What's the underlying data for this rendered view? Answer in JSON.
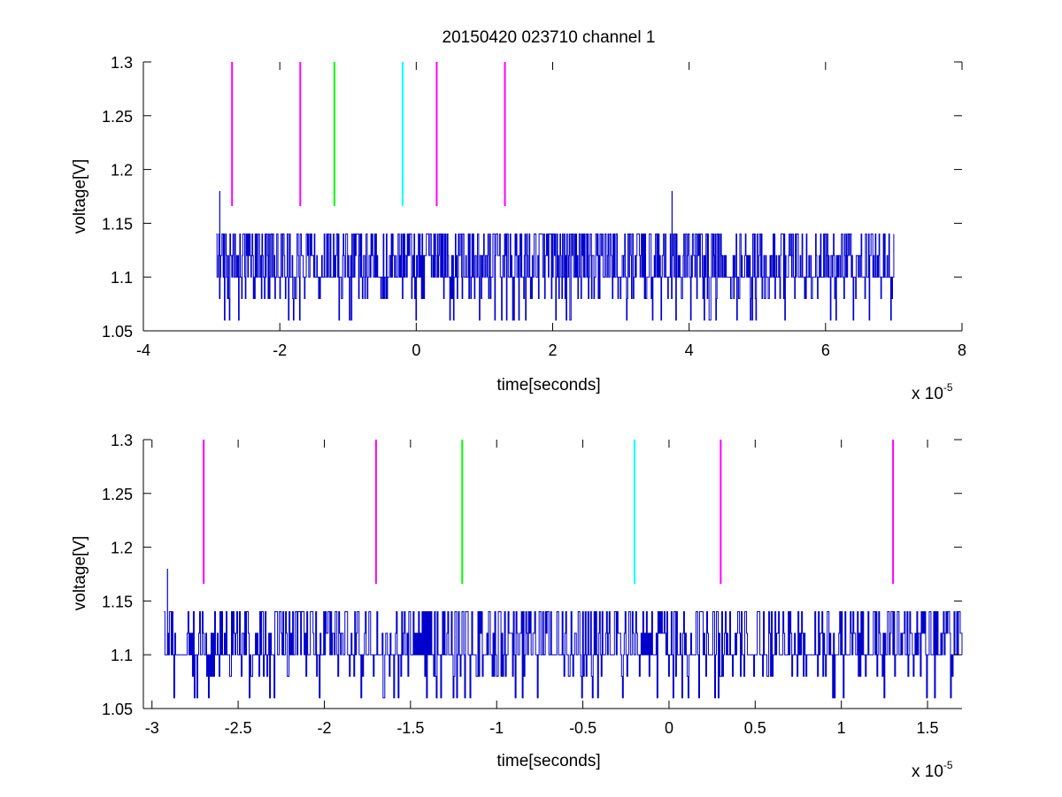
{
  "chart_data": [
    {
      "type": "line",
      "title": "20150420 023710 channel 1",
      "xlabel": "time[seconds]",
      "ylabel": "voltage[V]",
      "x_exponent_label": "x 10",
      "x_exponent_power": "-5",
      "xlim": [
        -4,
        8
      ],
      "ylim": [
        1.05,
        1.3
      ],
      "x_ticks": [
        -4,
        -2,
        0,
        2,
        4,
        6,
        8
      ],
      "x_tick_labels": [
        "-4",
        "-2",
        "0",
        "2",
        "4",
        "6",
        "8"
      ],
      "y_ticks": [
        1.05,
        1.1,
        1.15,
        1.2,
        1.25,
        1.3
      ],
      "y_tick_labels": [
        "1.05",
        "1.1",
        "1.15",
        "1.2",
        "1.25",
        "1.3"
      ],
      "grid": false,
      "signal": {
        "color": "#0000cc",
        "x_range": [
          -2.93,
          7.0
        ],
        "levels": [
          1.06,
          1.08,
          1.1,
          1.12,
          1.14
        ],
        "spikes": [
          {
            "x": -2.88,
            "y": 1.18
          },
          {
            "x": 3.75,
            "y": 1.18
          }
        ]
      },
      "markers": [
        {
          "x": -2.7,
          "color": "#ff00ff",
          "y_range": [
            1.166,
            1.3
          ]
        },
        {
          "x": -1.7,
          "color": "#ff00ff",
          "y_range": [
            1.166,
            1.3
          ]
        },
        {
          "x": -1.2,
          "color": "#00ff00",
          "y_range": [
            1.166,
            1.3
          ]
        },
        {
          "x": -0.2,
          "color": "#00ffff",
          "y_range": [
            1.166,
            1.3
          ]
        },
        {
          "x": 0.3,
          "color": "#ff00ff",
          "y_range": [
            1.166,
            1.3
          ]
        },
        {
          "x": 1.3,
          "color": "#ff00ff",
          "y_range": [
            1.166,
            1.3
          ]
        }
      ]
    },
    {
      "type": "line",
      "title": "",
      "xlabel": "time[seconds]",
      "ylabel": "voltage[V]",
      "x_exponent_label": "x 10",
      "x_exponent_power": "-5",
      "xlim": [
        -3.05,
        1.7
      ],
      "ylim": [
        1.05,
        1.3
      ],
      "x_ticks": [
        -3,
        -2.5,
        -2,
        -1.5,
        -1,
        -0.5,
        0,
        0.5,
        1,
        1.5
      ],
      "x_tick_labels": [
        "-3",
        "-2.5",
        "-2",
        "-1.5",
        "-1",
        "-0.5",
        "0",
        "0.5",
        "1",
        "1.5"
      ],
      "y_ticks": [
        1.05,
        1.1,
        1.15,
        1.2,
        1.25,
        1.3
      ],
      "y_tick_labels": [
        "1.05",
        "1.1",
        "1.15",
        "1.2",
        "1.25",
        "1.3"
      ],
      "grid": false,
      "signal": {
        "color": "#0000cc",
        "x_range": [
          -2.93,
          1.7
        ],
        "levels": [
          1.06,
          1.08,
          1.1,
          1.12,
          1.14
        ],
        "spikes": [
          {
            "x": -2.91,
            "y": 1.18
          }
        ]
      },
      "markers": [
        {
          "x": -2.7,
          "color": "#ff00ff",
          "y_range": [
            1.166,
            1.3
          ]
        },
        {
          "x": -1.7,
          "color": "#ff00ff",
          "y_range": [
            1.166,
            1.3
          ]
        },
        {
          "x": -1.2,
          "color": "#00ff00",
          "y_range": [
            1.166,
            1.3
          ]
        },
        {
          "x": -0.2,
          "color": "#00ffff",
          "y_range": [
            1.166,
            1.3
          ]
        },
        {
          "x": 0.3,
          "color": "#ff00ff",
          "y_range": [
            1.166,
            1.3
          ]
        },
        {
          "x": 1.3,
          "color": "#ff00ff",
          "y_range": [
            1.166,
            1.3
          ]
        }
      ]
    }
  ]
}
